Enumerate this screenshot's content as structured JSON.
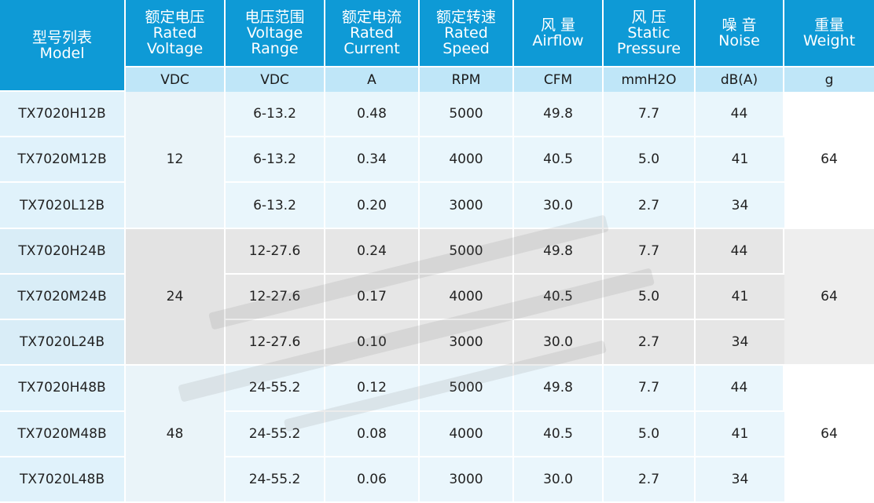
{
  "header": {
    "columns": [
      {
        "cn": "型号列表",
        "en": "Model",
        "unit": ""
      },
      {
        "cn": "额定电压",
        "en": "Rated Voltage",
        "unit": "VDC"
      },
      {
        "cn": "电压范围",
        "en": "Voltage Range",
        "unit": "VDC"
      },
      {
        "cn": "额定电流",
        "en": "Rated Current",
        "unit": "A"
      },
      {
        "cn": "额定转速",
        "en": "Rated Speed",
        "unit": "RPM"
      },
      {
        "cn": "风 量",
        "en": "Airflow",
        "unit": "CFM"
      },
      {
        "cn": "风 压",
        "en": "Static Pressure",
        "unit": "mmH2O"
      },
      {
        "cn": "噪 音",
        "en": "Noise",
        "unit": "dB(A)"
      },
      {
        "cn": "重量",
        "en": "Weight",
        "unit": "g"
      }
    ]
  },
  "groups": [
    {
      "rated_voltage": "12",
      "weight": "64",
      "rows": [
        {
          "model": "TX7020H12B",
          "range": "6-13.2",
          "current": "0.48",
          "speed": "5000",
          "airflow": "49.8",
          "pressure": "7.7",
          "noise": "44"
        },
        {
          "model": "TX7020M12B",
          "range": "6-13.2",
          "current": "0.34",
          "speed": "4000",
          "airflow": "40.5",
          "pressure": "5.0",
          "noise": "41"
        },
        {
          "model": "TX7020L12B",
          "range": "6-13.2",
          "current": "0.20",
          "speed": "3000",
          "airflow": "30.0",
          "pressure": "2.7",
          "noise": "34"
        }
      ]
    },
    {
      "rated_voltage": "24",
      "weight": "64",
      "rows": [
        {
          "model": "TX7020H24B",
          "range": "12-27.6",
          "current": "0.24",
          "speed": "5000",
          "airflow": "49.8",
          "pressure": "7.7",
          "noise": "44"
        },
        {
          "model": "TX7020M24B",
          "range": "12-27.6",
          "current": "0.17",
          "speed": "4000",
          "airflow": "40.5",
          "pressure": "5.0",
          "noise": "41"
        },
        {
          "model": "TX7020L24B",
          "range": "12-27.6",
          "current": "0.10",
          "speed": "3000",
          "airflow": "30.0",
          "pressure": "2.7",
          "noise": "34"
        }
      ]
    },
    {
      "rated_voltage": "48",
      "weight": "64",
      "rows": [
        {
          "model": "TX7020H48B",
          "range": "24-55.2",
          "current": "0.12",
          "speed": "5000",
          "airflow": "49.8",
          "pressure": "7.7",
          "noise": "44"
        },
        {
          "model": "TX7020M48B",
          "range": "24-55.2",
          "current": "0.08",
          "speed": "4000",
          "airflow": "40.5",
          "pressure": "5.0",
          "noise": "41"
        },
        {
          "model": "TX7020L48B",
          "range": "24-55.2",
          "current": "0.06",
          "speed": "3000",
          "airflow": "30.0",
          "pressure": "2.7",
          "noise": "34"
        }
      ]
    }
  ],
  "colors": {
    "header_bg": "#0e9ad6",
    "unit_row_bg": "#bfe6f8",
    "group_light_bg": "#e9f6fc",
    "group_gray_bg": "#e6e6e6"
  }
}
